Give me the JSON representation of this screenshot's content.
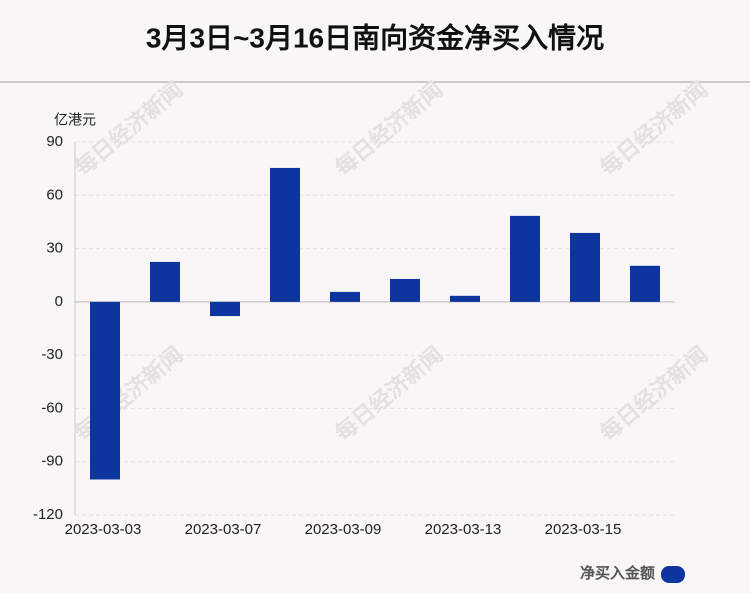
{
  "chart_data": {
    "type": "bar",
    "title": "3月3日~3月16日南向资金净买入情况",
    "y_label": "亿港元",
    "categories": [
      "2023-03-03",
      null,
      "2023-03-07",
      null,
      "2023-03-09",
      null,
      "2023-03-13",
      null,
      "2023-03-15",
      null
    ],
    "series": [
      {
        "name": "净买入金额",
        "color": "#0d35a0",
        "values": [
          -100,
          22.5,
          -8,
          75.4,
          5.6,
          12.9,
          3.4,
          48.4,
          38.8,
          20.3
        ]
      }
    ],
    "ylim": [
      -120,
      90
    ],
    "yticks": [
      -120,
      -90,
      -60,
      -30,
      0,
      30,
      60,
      90
    ],
    "grid": true,
    "legend": "bottom-right",
    "watermark": "每日经济新闻"
  }
}
